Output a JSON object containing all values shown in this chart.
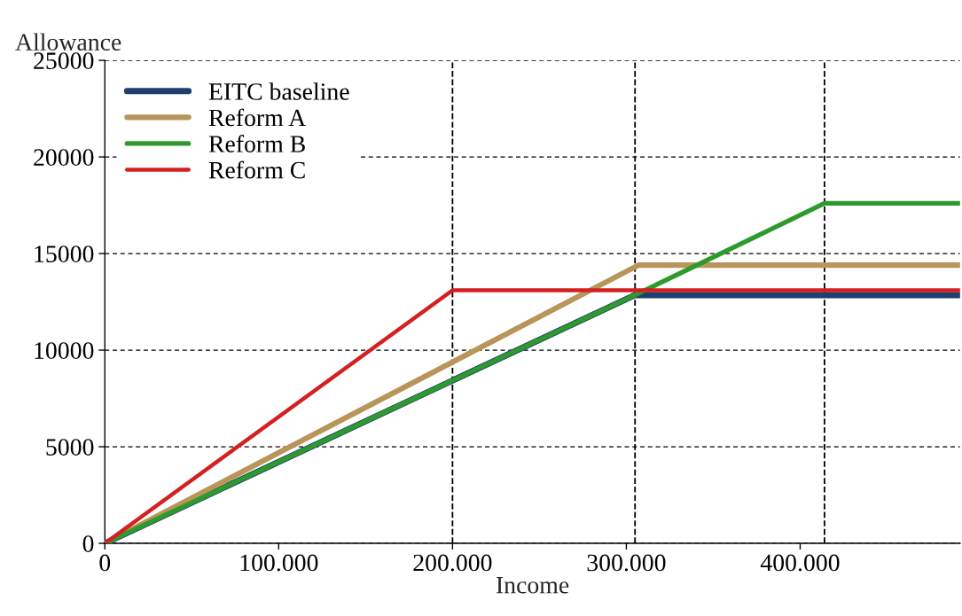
{
  "chart_data": {
    "type": "line",
    "xlabel": "Income",
    "ylabel": "Allowance",
    "series": [
      {
        "name": "EITC baseline",
        "color": "#1f3f6e",
        "x": [
          0,
          305000,
          492000
        ],
        "values": [
          0,
          12850,
          12850
        ]
      },
      {
        "name": "Reform A",
        "color": "#b8965a",
        "x": [
          0,
          307000,
          492000
        ],
        "values": [
          0,
          14400,
          14400
        ]
      },
      {
        "name": "Reform B",
        "color": "#2e9a2e",
        "x": [
          0,
          305000,
          414000,
          492000
        ],
        "values": [
          0,
          12850,
          17600,
          17600
        ]
      },
      {
        "name": "Reform C",
        "color": "#d42020",
        "x": [
          0,
          200000,
          492000
        ],
        "values": [
          0,
          13100,
          13100
        ]
      }
    ],
    "xlim": [
      0,
      492000
    ],
    "xticks": [
      0,
      {
        "value": 100000,
        "label": "100.000"
      },
      {
        "value": 200000,
        "label": "200.000"
      },
      {
        "value": 300000,
        "label": "300.000"
      },
      {
        "value": 400000,
        "label": "400.000"
      }
    ],
    "ylim": [
      0,
      25000
    ],
    "yticks": [
      0,
      5000,
      10000,
      15000,
      20000,
      25000
    ],
    "ref_lines": [
      {
        "axis": "x",
        "value": 200000,
        "line_style": "dashed",
        "color": "#000000"
      },
      {
        "axis": "x",
        "value": 305000,
        "line_style": "dashed",
        "color": "#000000"
      },
      {
        "axis": "x",
        "value": 414000,
        "line_style": "dashed",
        "color": "#000000"
      }
    ],
    "grid": "y",
    "legend": "top left",
    "marker": "none",
    "line_style": "solid"
  }
}
